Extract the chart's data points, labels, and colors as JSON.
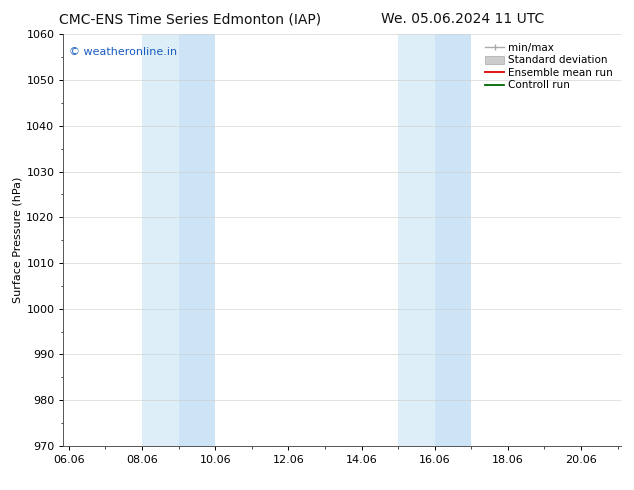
{
  "title_left": "CMC-ENS Time Series Edmonton (IAP)",
  "title_right": "We. 05.06.2024 11 UTC",
  "ylabel": "Surface Pressure (hPa)",
  "ylim": [
    970,
    1060
  ],
  "yticks": [
    970,
    980,
    990,
    1000,
    1010,
    1020,
    1030,
    1040,
    1050,
    1060
  ],
  "xlim_start": 5.85,
  "xlim_end": 21.1,
  "xtick_labels": [
    "06.06",
    "08.06",
    "10.06",
    "12.06",
    "14.06",
    "16.06",
    "18.06",
    "20.06"
  ],
  "xtick_positions": [
    6.0,
    8.0,
    10.0,
    12.0,
    14.0,
    16.0,
    18.0,
    20.0
  ],
  "shaded_regions": [
    {
      "xmin": 8.0,
      "xmax": 9.0,
      "color": "#ddeef8"
    },
    {
      "xmin": 9.0,
      "xmax": 10.0,
      "color": "#cce4f5"
    },
    {
      "xmin": 15.0,
      "xmax": 16.0,
      "color": "#ddeef8"
    },
    {
      "xmin": 16.0,
      "xmax": 17.0,
      "color": "#cce4f5"
    }
  ],
  "watermark_text": "© weatheronline.in",
  "watermark_color": "#1a5bbf",
  "legend_labels": [
    "min/max",
    "Standard deviation",
    "Ensemble mean run",
    "Controll run"
  ],
  "background_color": "#ffffff",
  "plot_bg_color": "#ffffff",
  "title_fontsize": 10,
  "ylabel_fontsize": 8,
  "tick_fontsize": 8,
  "legend_fontsize": 7.5,
  "watermark_fontsize": 8
}
